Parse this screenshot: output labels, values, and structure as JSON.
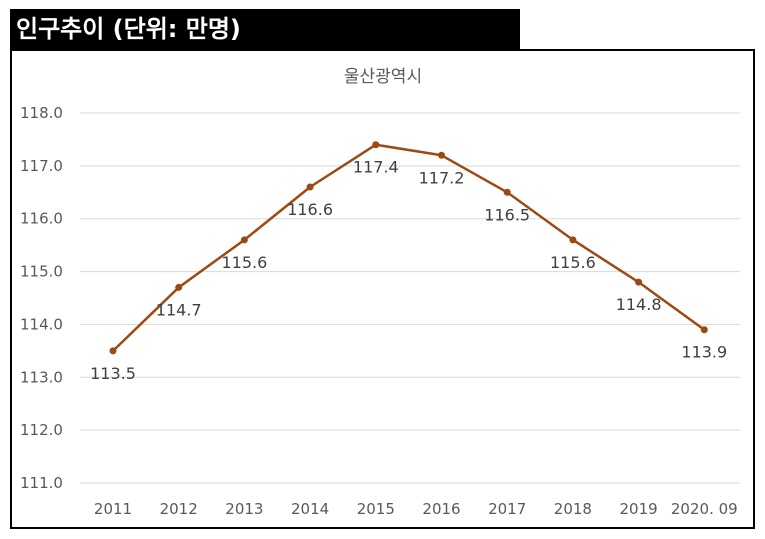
{
  "header": {
    "title": "인구추이 (단위: 만명)"
  },
  "chart_data": {
    "type": "line",
    "title": "울산광역시",
    "xlabel": "",
    "ylabel": "",
    "categories": [
      "2011",
      "2012",
      "2013",
      "2014",
      "2015",
      "2016",
      "2017",
      "2018",
      "2019",
      "2020. 09"
    ],
    "series": [
      {
        "values": [
          113.5,
          114.7,
          115.6,
          116.6,
          117.4,
          117.2,
          116.5,
          115.6,
          114.8,
          113.9
        ],
        "labels": [
          "113.5",
          "114.7",
          "115.6",
          "116.6",
          "117.4",
          "117.2",
          "116.5",
          "115.6",
          "114.8",
          "113.9"
        ],
        "color": "#9c4a12"
      }
    ],
    "ylim": [
      111.0,
      118.0
    ],
    "yticks": [
      "111.0",
      "112.0",
      "113.0",
      "114.0",
      "115.0",
      "116.0",
      "117.0",
      "118.0"
    ],
    "grid": true,
    "legend": "none"
  }
}
